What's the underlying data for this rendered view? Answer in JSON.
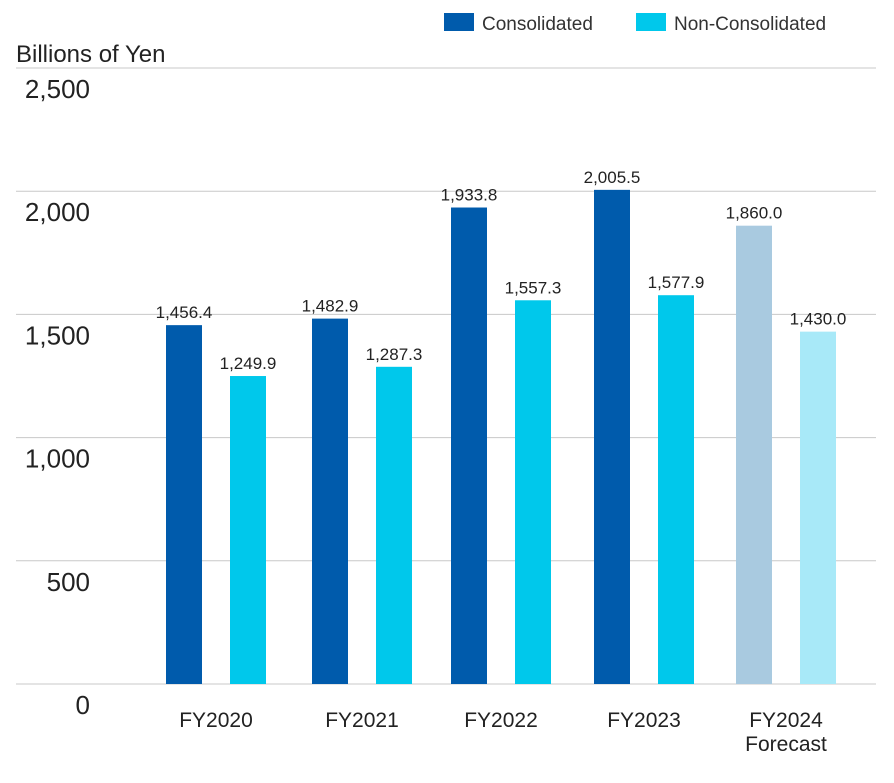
{
  "chart_data": {
    "type": "bar",
    "ylabel": "Billions of Yen",
    "ylim": [
      0,
      2500
    ],
    "yticks": [
      "0",
      "500",
      "1,000",
      "1,500",
      "2,000",
      "2,500"
    ],
    "ytick_values": [
      0,
      500,
      1000,
      1500,
      2000,
      2500
    ],
    "grid": true,
    "legend_position": "top-right",
    "categories": [
      [
        "FY2020"
      ],
      [
        "FY2021"
      ],
      [
        "FY2022"
      ],
      [
        "FY2023"
      ],
      [
        "FY2024",
        "Forecast"
      ]
    ],
    "series": [
      {
        "name": "Consolidated",
        "color": "#005BAC",
        "forecast_color": "#A9CAE0",
        "values": [
          1456.4,
          1482.9,
          1933.8,
          2005.5,
          1860.0
        ],
        "labels": [
          "1,456.4",
          "1,482.9",
          "1,933.8",
          "2,005.5",
          "1,860.0"
        ]
      },
      {
        "name": "Non-Consolidated",
        "color": "#00C8EB",
        "forecast_color": "#A8E9F8",
        "values": [
          1249.9,
          1287.3,
          1557.3,
          1577.9,
          1430.0
        ],
        "labels": [
          "1,249.9",
          "1,287.3",
          "1,557.3",
          "1,577.9",
          "1,430.0"
        ]
      }
    ],
    "forecast_index": 4
  }
}
